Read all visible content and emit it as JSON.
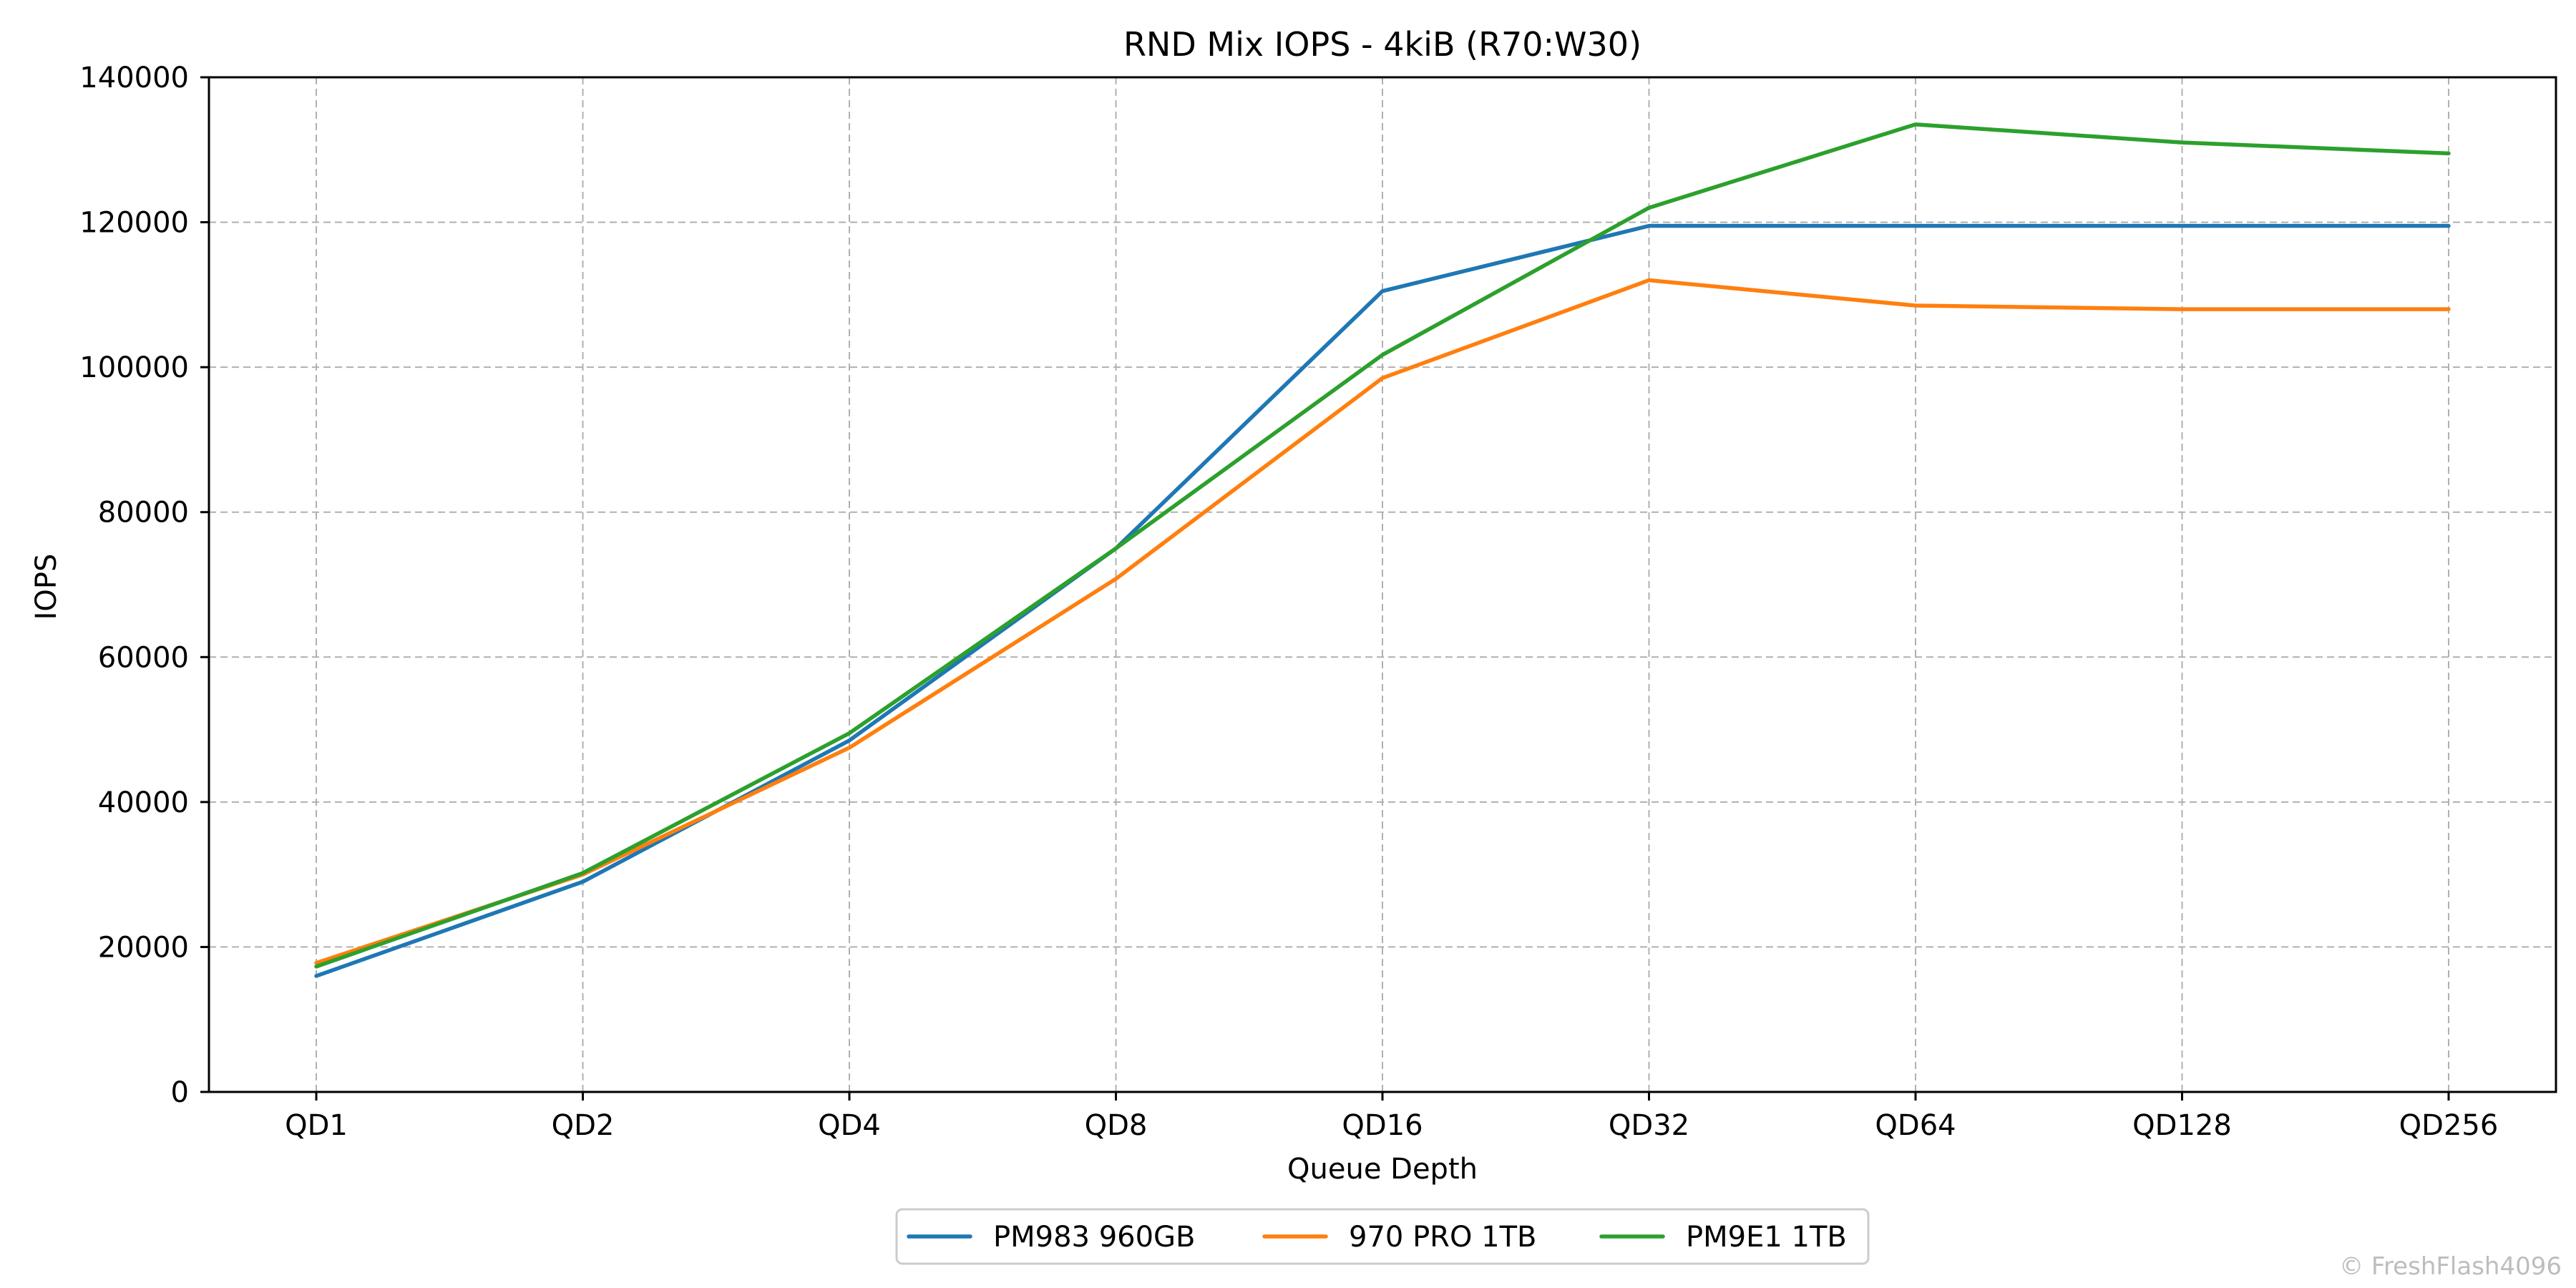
{
  "chart_data": {
    "type": "line",
    "title": "RND Mix IOPS - 4kiB (R70:W30)",
    "xlabel": "Queue Depth",
    "ylabel": "IOPS",
    "categories": [
      "QD1",
      "QD2",
      "QD4",
      "QD8",
      "QD16",
      "QD32",
      "QD64",
      "QD128",
      "QD256"
    ],
    "ylim": [
      0,
      140000
    ],
    "yticks": [
      "0",
      "20000",
      "40000",
      "60000",
      "80000",
      "100000",
      "120000",
      "140000"
    ],
    "grid": true,
    "legend_position": "bottom-center",
    "series": [
      {
        "name": "PM983 960GB",
        "color": "#1f77b4",
        "values": [
          16000,
          29000,
          48500,
          75000,
          110500,
          119500,
          119500,
          119500,
          119500
        ]
      },
      {
        "name": "970 PRO 1TB",
        "color": "#ff7f0e",
        "values": [
          17800,
          30000,
          47500,
          70800,
          98500,
          112000,
          108500,
          108000,
          108000
        ]
      },
      {
        "name": "PM9E1 1TB",
        "color": "#2ca02c",
        "values": [
          17300,
          30200,
          49500,
          75000,
          101700,
          122000,
          133500,
          131000,
          129500
        ]
      }
    ]
  },
  "footer": {
    "credit": "© FreshFlash4096"
  }
}
